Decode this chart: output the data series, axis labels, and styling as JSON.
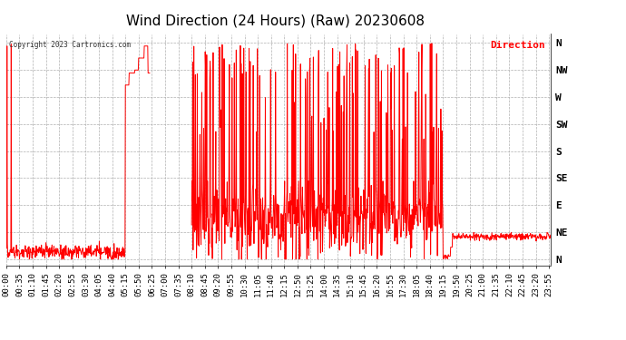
{
  "title": "Wind Direction (24 Hours) (Raw) 20230608",
  "copyright": "Copyright 2023 Cartronics.com",
  "legend_label": "Direction",
  "legend_color": "#ff0000",
  "line_color": "#ff0000",
  "background_color": "#ffffff",
  "grid_color": "#b0b0b0",
  "ytick_labels": [
    "N",
    "NE",
    "E",
    "SE",
    "S",
    "SW",
    "W",
    "NW",
    "N"
  ],
  "ytick_values": [
    0,
    45,
    90,
    135,
    180,
    225,
    270,
    315,
    360
  ],
  "ylim": [
    -10,
    375
  ],
  "title_fontsize": 11,
  "tick_label_fontsize": 6.5,
  "xtick_interval_minutes": 35
}
